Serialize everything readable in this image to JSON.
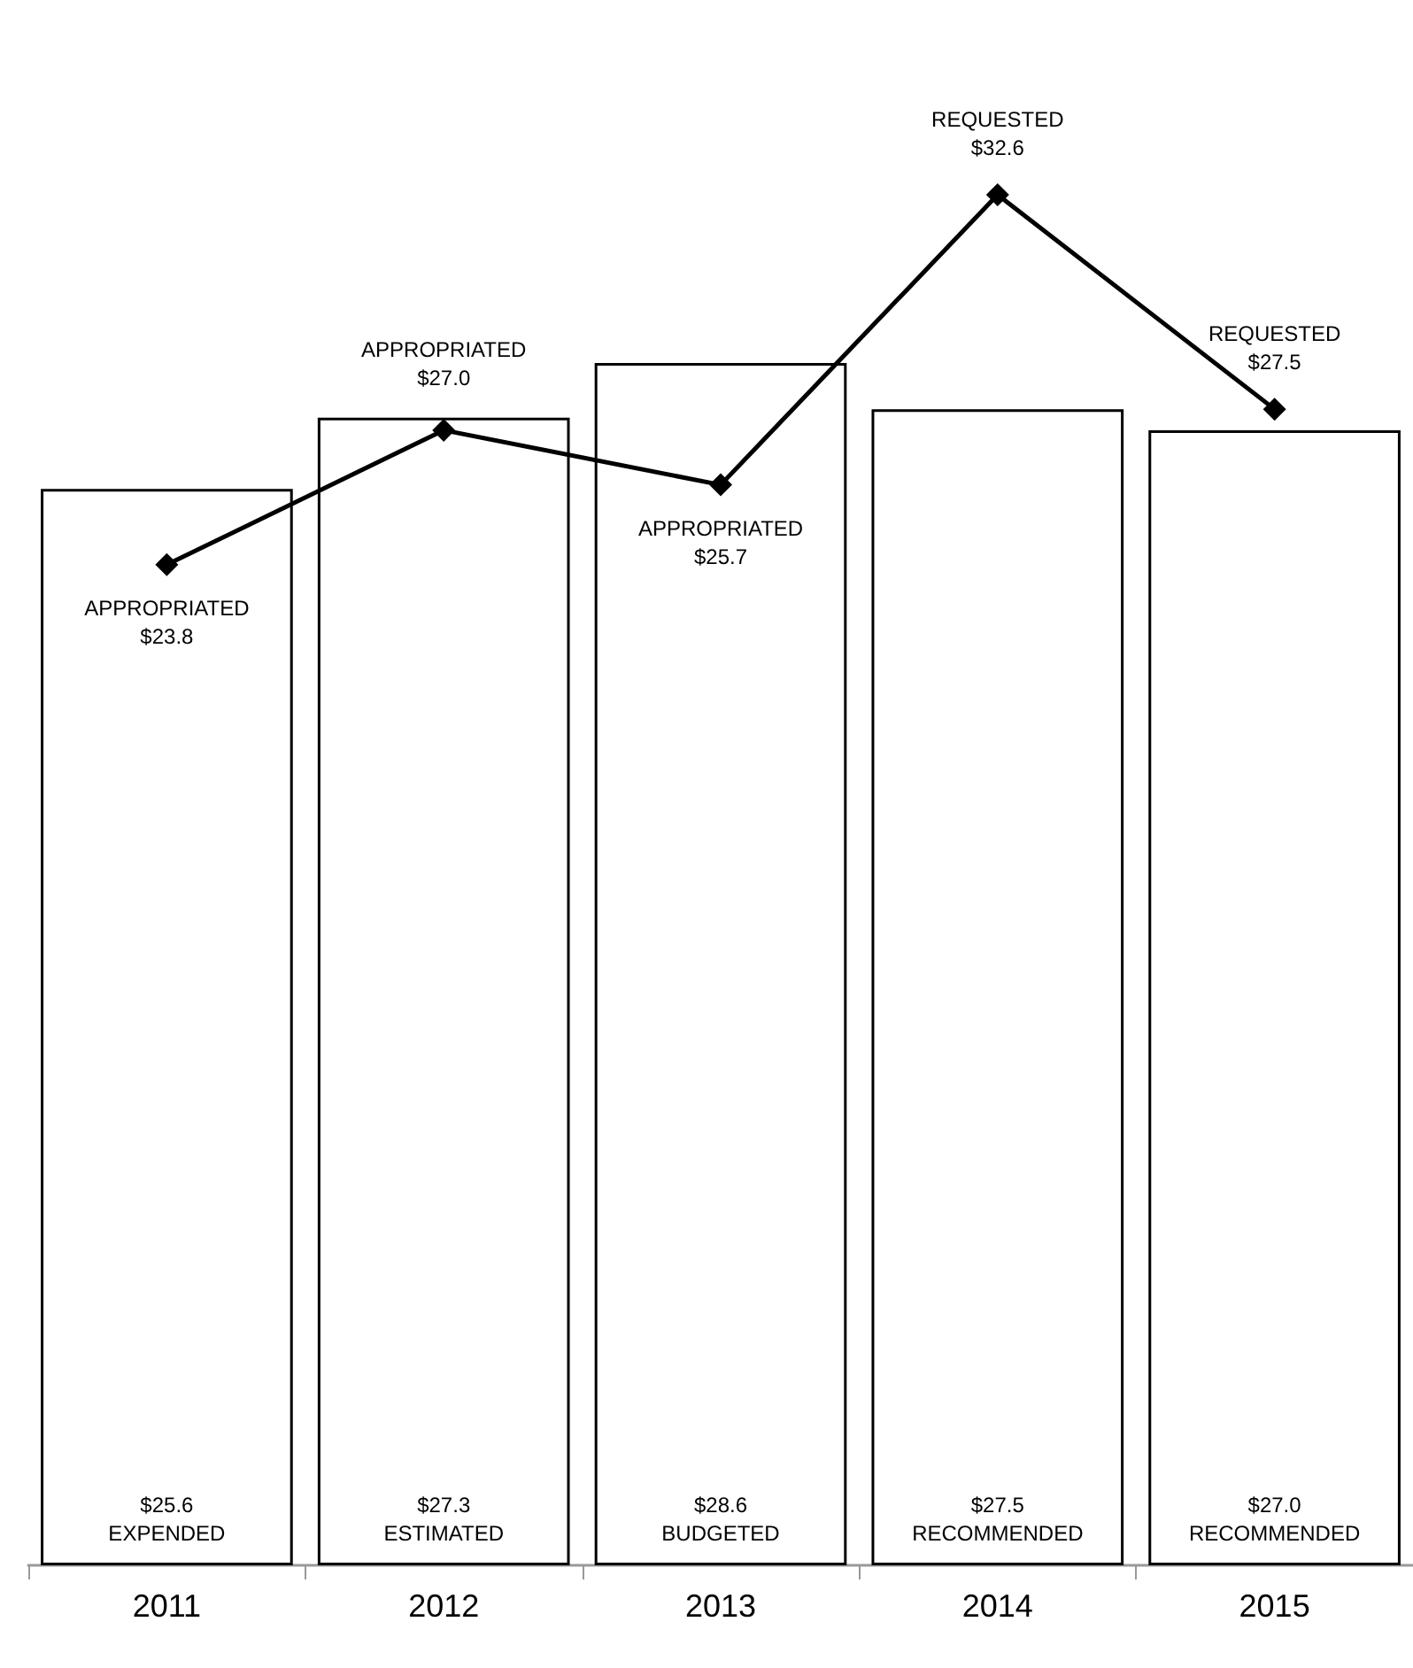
{
  "chart_data": {
    "type": "bar",
    "categories": [
      "2011",
      "2012",
      "2013",
      "2014",
      "2015"
    ],
    "series": [
      {
        "color": "#ffffff",
        "values": [
          25.6,
          27.3,
          28.6,
          27.5,
          27.0
        ],
        "value_labels": [
          "$25.6\nEXPENDED",
          "$27.3\nESTIMATED",
          "$28.6\nBUDGETED",
          "$27.5\nRECOMMENDED",
          "$27.0\nRECOMMENDED"
        ]
      },
      {
        "type": "line",
        "color": "#000000",
        "values": [
          23.8,
          27.0,
          25.7,
          32.6,
          27.5
        ],
        "value_labels": [
          "APPROPRIATED\n$23.8",
          "APPROPRIATED\n$27.0",
          "APPROPRIATED\n$25.7",
          "REQUESTED\n$32.6",
          "REQUESTED\n$27.5"
        ],
        "marker": "diamond",
        "line_style": "solid"
      }
    ],
    "grid": false
  }
}
